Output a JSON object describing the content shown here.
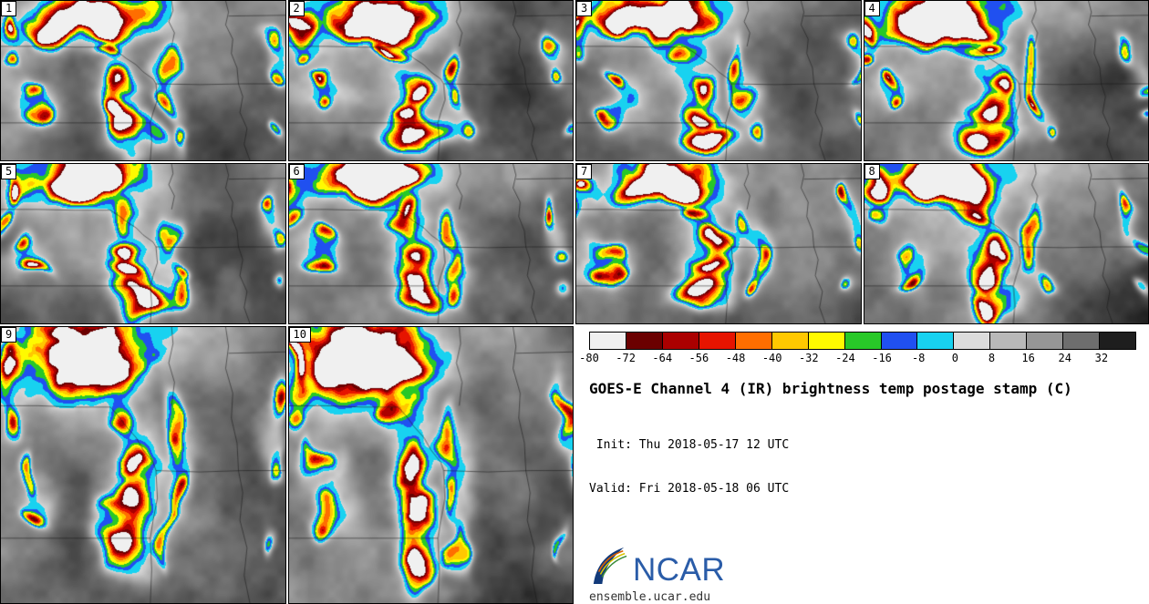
{
  "panels": [
    {
      "label": "1"
    },
    {
      "label": "2"
    },
    {
      "label": "3"
    },
    {
      "label": "4"
    },
    {
      "label": "5"
    },
    {
      "label": "6"
    },
    {
      "label": "7"
    },
    {
      "label": "8"
    },
    {
      "label": "9"
    },
    {
      "label": "10"
    }
  ],
  "colorbar": {
    "ticks": [
      "-80",
      "-72",
      "-64",
      "-56",
      "-48",
      "-40",
      "-32",
      "-24",
      "-16",
      "-8",
      "0",
      "8",
      "16",
      "24",
      "32"
    ],
    "segments": [
      "#f0f0f0",
      "#6b0000",
      "#ab0000",
      "#e61400",
      "#ff6e00",
      "#ffc800",
      "#fffa00",
      "#28c828",
      "#2050f0",
      "#18d2f0",
      "#dcdcdc",
      "#b9b9b9",
      "#969696",
      "#6e6e6e",
      "#1e1e1e"
    ]
  },
  "legend": {
    "title": "GOES-E Channel 4 (IR) brightness temp postage stamp (C)",
    "init_line": " Init: Thu 2018-05-17 12 UTC",
    "valid_line": "Valid: Fri 2018-05-18 06 UTC"
  },
  "branding": {
    "logo_text": "NCAR",
    "url": "ensemble.ucar.edu",
    "logo_color": "#2a5ca8"
  }
}
